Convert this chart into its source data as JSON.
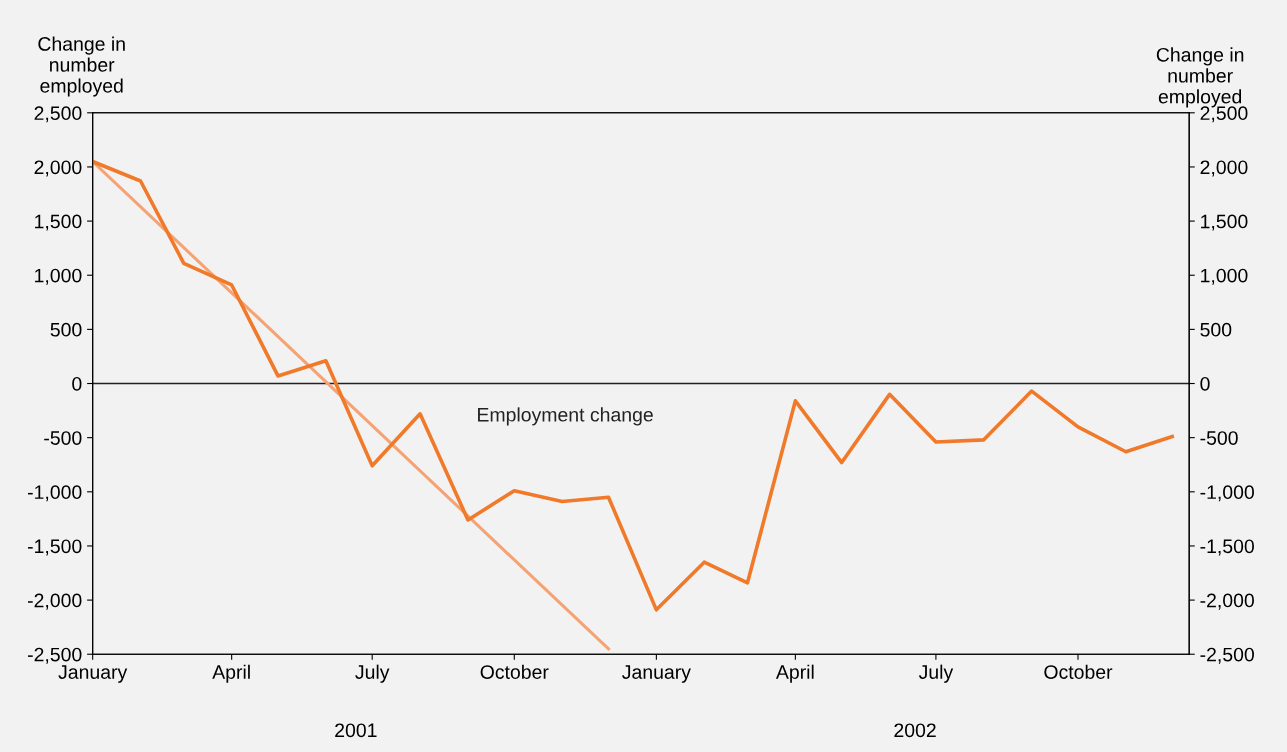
{
  "chart_data": {
    "type": "line",
    "ylabel": "Change in\nnumber\nemployed",
    "y2label": "Change in\nnumber\nemployed",
    "x": [
      "2001-01",
      "2001-02",
      "2001-03",
      "2001-04",
      "2001-05",
      "2001-06",
      "2001-07",
      "2001-08",
      "2001-09",
      "2001-10",
      "2001-11",
      "2001-12",
      "2002-01",
      "2002-02",
      "2002-03",
      "2002-04",
      "2002-05",
      "2002-06",
      "2002-07",
      "2002-08",
      "2002-09",
      "2002-10",
      "2002-11",
      "2002-12"
    ],
    "series": [
      {
        "name": "Employment change",
        "color": "#f07a2a",
        "values": [
          2050,
          1870,
          1110,
          910,
          70,
          210,
          -760,
          -280,
          -1260,
          -990,
          -1090,
          -1050,
          -2090,
          -1650,
          -1840,
          -160,
          -730,
          -100,
          -540,
          -520,
          -70,
          -400,
          -630,
          -490
        ]
      },
      {
        "type": "line",
        "color": "#f5a274",
        "x": [
          "2001-01",
          "2001-12"
        ],
        "values": [
          2050,
          -2450
        ]
      }
    ],
    "xlim": [
      "2001-01-01",
      "2002-12-12"
    ],
    "xticks": [
      {
        "value": "2001-01",
        "label": "January"
      },
      {
        "value": "2001-04",
        "label": "April"
      },
      {
        "value": "2001-07",
        "label": "July"
      },
      {
        "value": "2001-10",
        "label": "October"
      },
      {
        "value": "2002-01",
        "label": "January"
      },
      {
        "value": "2002-04",
        "label": "April"
      },
      {
        "value": "2002-07",
        "label": "July"
      },
      {
        "value": "2002-10",
        "label": "October"
      }
    ],
    "ylim": [
      -2500,
      2500
    ],
    "yticks": [
      {
        "value": 2500,
        "label": "2,500"
      },
      {
        "value": 2000,
        "label": "2,000"
      },
      {
        "value": 1500,
        "label": "1,500"
      },
      {
        "value": 1000,
        "label": "1,000"
      },
      500,
      0,
      -500,
      {
        "value": -1000,
        "label": "-1,000"
      },
      {
        "value": -1500,
        "label": "-1,500"
      },
      {
        "value": -2000,
        "label": "-2,000"
      },
      {
        "value": -2500,
        "label": "-2,500"
      }
    ],
    "y2lim": [
      -2500,
      2500
    ],
    "y2ticks": [
      {
        "value": 2500,
        "label": "2,500"
      },
      {
        "value": 2000,
        "label": "2,000"
      },
      {
        "value": 1500,
        "label": "1,500"
      },
      {
        "value": 1000,
        "label": "1,000"
      },
      500,
      0,
      -500,
      {
        "value": -1000,
        "label": "-1,000"
      },
      {
        "value": -1500,
        "label": "-1,500"
      },
      {
        "value": -2000,
        "label": "-2,000"
      },
      {
        "value": -2500,
        "label": "-2,500"
      }
    ],
    "ref_lines": [
      {
        "axis": "y",
        "value": 0,
        "color": "#222222"
      }
    ],
    "annotations": [
      "2001",
      "2002"
    ],
    "grid": false,
    "legend": false,
    "marker": "none",
    "line_style": "solid"
  }
}
